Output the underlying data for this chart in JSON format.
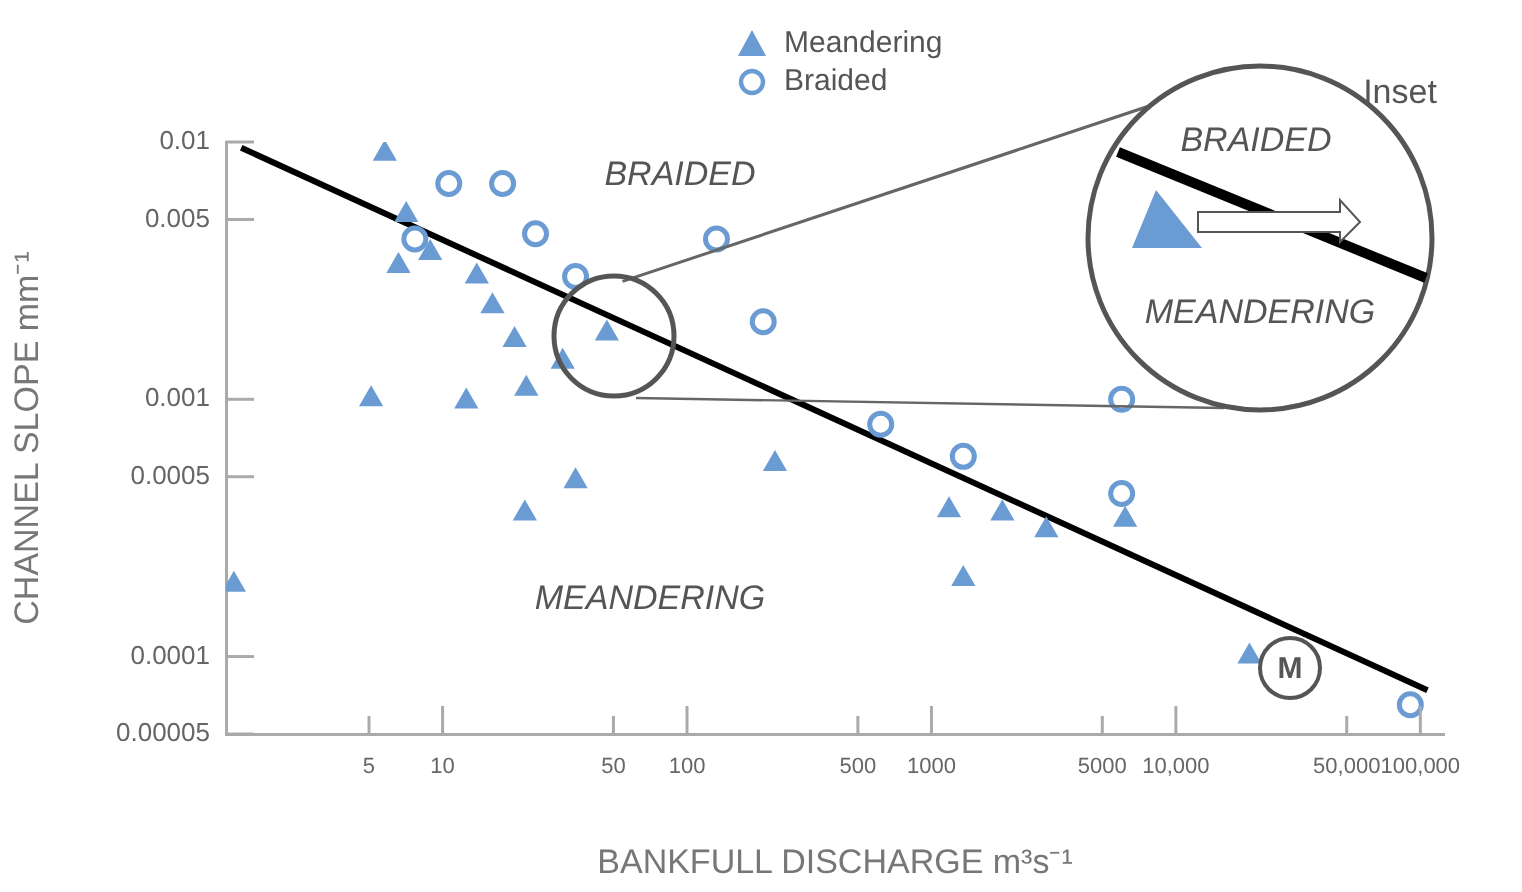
{
  "chart_data": {
    "type": "scatter",
    "xlabel": "BANKFULL DISCHARGE m³s⁻¹",
    "ylabel": "CHANNEL SLOPE mm⁻¹",
    "log": "xy",
    "xlim": [
      1.3,
      125000
    ],
    "ylim": [
      5e-05,
      0.01
    ],
    "xticks": [
      5,
      10,
      50,
      100,
      500,
      1000,
      5000,
      {
        "value": 10000,
        "label": "10,000"
      },
      {
        "value": 50000,
        "label": "50,000"
      },
      {
        "value": 100000,
        "label": "100,000"
      }
    ],
    "yticks": [
      {
        "value": 5e-05,
        "label": "0.00005"
      },
      0.0001,
      0.0005,
      0.001,
      0.005,
      0.01
    ],
    "legend": "top",
    "grid": false,
    "series": [
      {
        "name": "Meandering",
        "type": "scatter",
        "marker": "triangle",
        "color": "#6a9bd3",
        "x": [
          1.4,
          5.8,
          7.1,
          6.6,
          8.9,
          13.8,
          16,
          19.7,
          31,
          22,
          12.5,
          5.1,
          47,
          35,
          21.7,
          229,
          1180,
          1950,
          2950,
          1350,
          6200,
          20000
        ],
        "values": [
          0.00019,
          0.009,
          0.0052,
          0.0033,
          0.0037,
          0.003,
          0.0023,
          0.0017,
          0.0014,
          0.0011,
          0.00098,
          0.001,
          0.0018,
          0.00048,
          0.00036,
          0.00056,
          0.00037,
          0.00036,
          0.00031,
          0.0002,
          0.00034,
          0.0001
        ]
      },
      {
        "name": "Braided",
        "type": "scatter",
        "marker": "circle",
        "color": "#6a9bd3",
        "x": [
          10.6,
          17.6,
          7.7,
          24,
          35,
          132,
          205,
          620,
          1350,
          6000,
          6000,
          91000
        ],
        "values": [
          0.0069,
          0.0069,
          0.0042,
          0.0044,
          0.003,
          0.0042,
          0.002,
          0.0008,
          0.0006,
          0.001,
          0.00043,
          6.5e-05
        ]
      },
      {
        "type": "line",
        "color": "#000000",
        "x": [
          1.5,
          107000
        ],
        "values": [
          0.0095,
          7.4e-05
        ]
      }
    ],
    "annotations": [
      "BRAIDED",
      "MEANDERING",
      "Inset",
      "BRAIDED",
      "MEANDERING",
      "M"
    ]
  }
}
